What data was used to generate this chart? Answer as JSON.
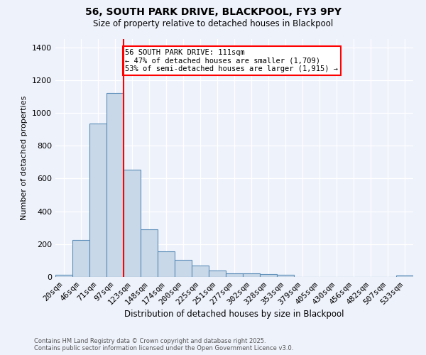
{
  "title": "56, SOUTH PARK DRIVE, BLACKPOOL, FY3 9PY",
  "subtitle": "Size of property relative to detached houses in Blackpool",
  "xlabel": "Distribution of detached houses by size in Blackpool",
  "ylabel": "Number of detached properties",
  "bin_labels": [
    "20sqm",
    "46sqm",
    "71sqm",
    "97sqm",
    "123sqm",
    "148sqm",
    "174sqm",
    "200sqm",
    "225sqm",
    "251sqm",
    "277sqm",
    "302sqm",
    "328sqm",
    "353sqm",
    "379sqm",
    "405sqm",
    "430sqm",
    "456sqm",
    "482sqm",
    "507sqm",
    "533sqm"
  ],
  "bar_values": [
    15,
    225,
    935,
    1120,
    655,
    290,
    155,
    105,
    70,
    38,
    22,
    20,
    18,
    12,
    0,
    0,
    0,
    0,
    0,
    0,
    10
  ],
  "bar_color": "#c8d8e8",
  "bar_edge_color": "#5b8db8",
  "vline_x_idx": 3,
  "vline_color": "red",
  "annotation_text": "56 SOUTH PARK DRIVE: 111sqm\n← 47% of detached houses are smaller (1,709)\n53% of semi-detached houses are larger (1,915) →",
  "annotation_box_color": "white",
  "annotation_box_edge": "red",
  "ylim": [
    0,
    1450
  ],
  "background_color": "#eef2fb",
  "footer_line1": "Contains HM Land Registry data © Crown copyright and database right 2025.",
  "footer_line2": "Contains public sector information licensed under the Open Government Licence v3.0."
}
